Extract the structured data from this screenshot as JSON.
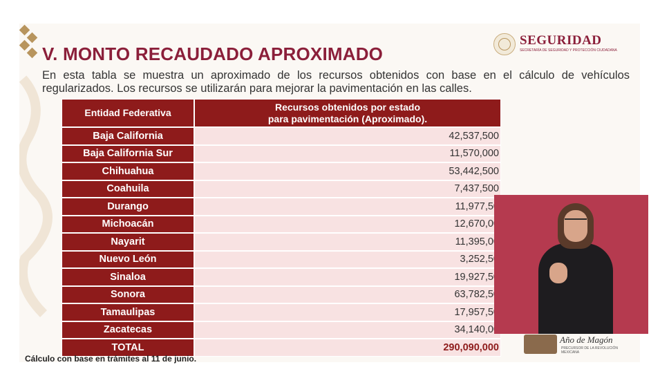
{
  "header": {
    "title": "V. MONTO RECAUDADO APROXIMADO",
    "logo_title": "SEGURIDAD",
    "logo_subtitle": "SECRETARÍA DE SEGURIDAD Y PROTECCIÓN CIUDADANA"
  },
  "description": "En esta tabla se muestra un aproximado de los recursos obtenidos con base en el cálculo de vehículos regularizados. Los recursos se utilizarán para mejorar la pavimentación en las calles.",
  "table": {
    "col_entity": "Entidad Federativa",
    "col_amount_line1": "Recursos obtenidos por estado",
    "col_amount_line2": "para pavimentación (Aproximado).",
    "rows": [
      {
        "state": "Baja California",
        "amount": "42,537,500"
      },
      {
        "state": "Baja California Sur",
        "amount": "11,570,000"
      },
      {
        "state": "Chihuahua",
        "amount": "53,442,500"
      },
      {
        "state": "Coahuila",
        "amount": "7,437,500"
      },
      {
        "state": "Durango",
        "amount": "11,977,50"
      },
      {
        "state": "Michoacán",
        "amount": "12,670,00"
      },
      {
        "state": "Nayarit",
        "amount": "11,395,00"
      },
      {
        "state": "Nuevo León",
        "amount": "3,252,50"
      },
      {
        "state": "Sinaloa",
        "amount": "19,927,50"
      },
      {
        "state": "Sonora",
        "amount": "63,782,50"
      },
      {
        "state": "Tamaulipas",
        "amount": "17,957,50"
      },
      {
        "state": "Zacatecas",
        "amount": "34,140,00"
      }
    ],
    "total_label": "TOTAL",
    "total_amount": "290,090,000"
  },
  "footnote": "Cálculo con base en trámites al 11 de junio.",
  "brand": {
    "text": "Año de Magón",
    "subtext": "PRECURSOR DE LA REVOLUCIÓN MEXICANA"
  },
  "colors": {
    "header_red": "#8e1b1b",
    "title_maroon": "#8b1f3a",
    "row_pink": "#f8e2e2",
    "gold": "#b8955e",
    "interpreter_bg": "#b53a4f"
  },
  "icons": {
    "ornament": "diamond-ornament-icon",
    "seal": "mexican-seal-icon"
  }
}
